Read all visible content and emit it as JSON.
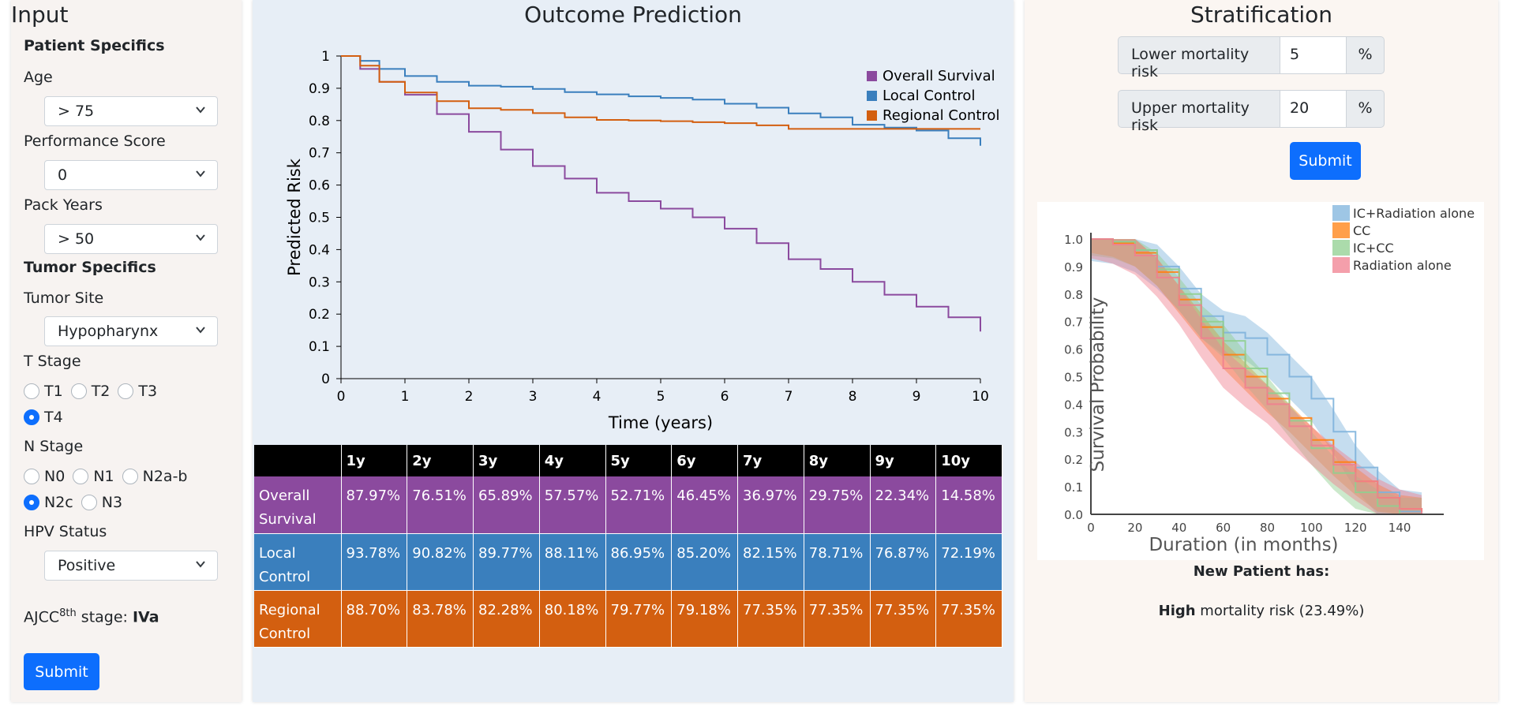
{
  "input_panel": {
    "title": "Input",
    "patient_specifics_heading": "Patient Specifics",
    "age": {
      "label": "Age",
      "value": "> 75"
    },
    "performance_score": {
      "label": "Performance Score",
      "value": "0"
    },
    "pack_years": {
      "label": "Pack Years",
      "value": "> 50"
    },
    "tumor_specifics_heading": "Tumor Specifics",
    "tumor_site": {
      "label": "Tumor Site",
      "value": "Hypopharynx"
    },
    "t_stage": {
      "label": "T Stage",
      "options": [
        "T1",
        "T2",
        "T3",
        "T4"
      ],
      "selected": "T4"
    },
    "n_stage": {
      "label": "N Stage",
      "options": [
        "N0",
        "N1",
        "N2a-b",
        "N2c",
        "N3"
      ],
      "selected": "N2c"
    },
    "hpv_status": {
      "label": "HPV Status",
      "value": "Positive"
    },
    "ajcc": {
      "prefix": "AJCC",
      "sup": "8th",
      "suffix": " stage: ",
      "value": "IVa"
    },
    "submit_label": "Submit"
  },
  "outcome_panel": {
    "title": "Outcome Prediction",
    "table": {
      "headers": [
        "",
        "1y",
        "2y",
        "3y",
        "4y",
        "5y",
        "6y",
        "7y",
        "8y",
        "9y",
        "10y"
      ],
      "rows": [
        {
          "label": "Overall Survival",
          "color": "#8b4a9e",
          "values": [
            "87.97%",
            "76.51%",
            "65.89%",
            "57.57%",
            "52.71%",
            "46.45%",
            "36.97%",
            "29.75%",
            "22.34%",
            "14.58%"
          ]
        },
        {
          "label": "Local Control",
          "color": "#3a7fbd",
          "values": [
            "93.78%",
            "90.82%",
            "89.77%",
            "88.11%",
            "86.95%",
            "85.20%",
            "82.15%",
            "78.71%",
            "76.87%",
            "72.19%"
          ]
        },
        {
          "label": "Regional Control",
          "color": "#d35f10",
          "values": [
            "88.70%",
            "83.78%",
            "82.28%",
            "80.18%",
            "79.77%",
            "79.18%",
            "77.35%",
            "77.35%",
            "77.35%",
            "77.35%"
          ]
        }
      ]
    }
  },
  "stratification_panel": {
    "title": "Stratification",
    "lower": {
      "label": "Lower mortality risk",
      "value": "5",
      "unit": "%"
    },
    "upper": {
      "label": "Upper mortality risk",
      "value": "20",
      "unit": "%"
    },
    "submit_label": "Submit",
    "result_heading": "New Patient has:",
    "result_level": "High",
    "result_text": " mortality risk (23.49%)"
  },
  "chart_data": [
    {
      "type": "line",
      "xlabel": "Time (years)",
      "ylabel": "Predicted Risk",
      "xlim": [
        0,
        10
      ],
      "ylim": [
        0,
        1
      ],
      "x_ticks": [
        "0",
        "1",
        "2",
        "3",
        "4",
        "5",
        "6",
        "7",
        "8",
        "9",
        "10"
      ],
      "y_ticks": [
        "0",
        "0.1",
        "0.2",
        "0.3",
        "0.4",
        "0.5",
        "0.6",
        "0.7",
        "0.8",
        "0.9",
        "1"
      ],
      "legend_position": "top-right",
      "x": [
        0,
        0.3,
        0.6,
        1,
        1.5,
        2,
        2.5,
        3,
        3.5,
        4,
        4.5,
        5,
        5.5,
        6,
        6.5,
        7,
        7.5,
        8,
        8.5,
        9,
        9.5,
        10
      ],
      "series": [
        {
          "name": "Overall Survival",
          "color": "#8b4a9e",
          "values": [
            1,
            0.96,
            0.92,
            0.88,
            0.82,
            0.765,
            0.71,
            0.659,
            0.62,
            0.576,
            0.55,
            0.527,
            0.5,
            0.465,
            0.42,
            0.37,
            0.34,
            0.3,
            0.26,
            0.223,
            0.19,
            0.146
          ]
        },
        {
          "name": "Local Control",
          "color": "#3a7fbd",
          "values": [
            1,
            0.985,
            0.96,
            0.938,
            0.92,
            0.908,
            0.905,
            0.898,
            0.888,
            0.881,
            0.875,
            0.87,
            0.865,
            0.852,
            0.84,
            0.822,
            0.81,
            0.787,
            0.778,
            0.769,
            0.745,
            0.722
          ]
        },
        {
          "name": "Regional Control",
          "color": "#d35f10",
          "values": [
            1,
            0.97,
            0.92,
            0.887,
            0.86,
            0.838,
            0.833,
            0.823,
            0.81,
            0.802,
            0.8,
            0.798,
            0.795,
            0.792,
            0.785,
            0.774,
            0.774,
            0.774,
            0.774,
            0.774,
            0.774,
            0.774
          ]
        }
      ]
    },
    {
      "type": "line",
      "xlabel": "Duration (in months)",
      "ylabel": "Survival Probability",
      "xlim": [
        0,
        160
      ],
      "ylim": [
        0,
        1
      ],
      "x_ticks": [
        "0",
        "20",
        "40",
        "60",
        "80",
        "100",
        "120",
        "140"
      ],
      "y_ticks": [
        "0.0",
        "0.1",
        "0.2",
        "0.3",
        "0.4",
        "0.5",
        "0.6",
        "0.7",
        "0.8",
        "0.9",
        "1.0"
      ],
      "legend_position": "top-right",
      "x": [
        0,
        10,
        20,
        30,
        40,
        50,
        60,
        70,
        80,
        90,
        100,
        110,
        120,
        130,
        140,
        150
      ],
      "series": [
        {
          "name": "IC+Radiation alone",
          "color": "#7eb3dc",
          "values": [
            1,
            0.99,
            0.96,
            0.9,
            0.82,
            0.72,
            0.66,
            0.64,
            0.58,
            0.5,
            0.42,
            0.3,
            0.17,
            0.08,
            0.01,
            0
          ]
        },
        {
          "name": "CC",
          "color": "#ff7f0e",
          "values": [
            1,
            0.985,
            0.95,
            0.88,
            0.78,
            0.68,
            0.58,
            0.5,
            0.42,
            0.35,
            0.27,
            0.19,
            0.12,
            0.06,
            0.02,
            0.01
          ]
        },
        {
          "name": "IC+CC",
          "color": "#8fcf8f",
          "values": [
            1,
            0.99,
            0.96,
            0.89,
            0.8,
            0.7,
            0.63,
            0.53,
            0.44,
            0.34,
            0.24,
            0.15,
            0.08,
            0.03,
            0,
            0
          ]
        },
        {
          "name": "Radiation alone",
          "color": "#f07f8f",
          "values": [
            1,
            0.98,
            0.94,
            0.86,
            0.76,
            0.64,
            0.53,
            0.46,
            0.4,
            0.32,
            0.25,
            0.18,
            0.12,
            0.06,
            0.02,
            0
          ]
        }
      ]
    }
  ]
}
